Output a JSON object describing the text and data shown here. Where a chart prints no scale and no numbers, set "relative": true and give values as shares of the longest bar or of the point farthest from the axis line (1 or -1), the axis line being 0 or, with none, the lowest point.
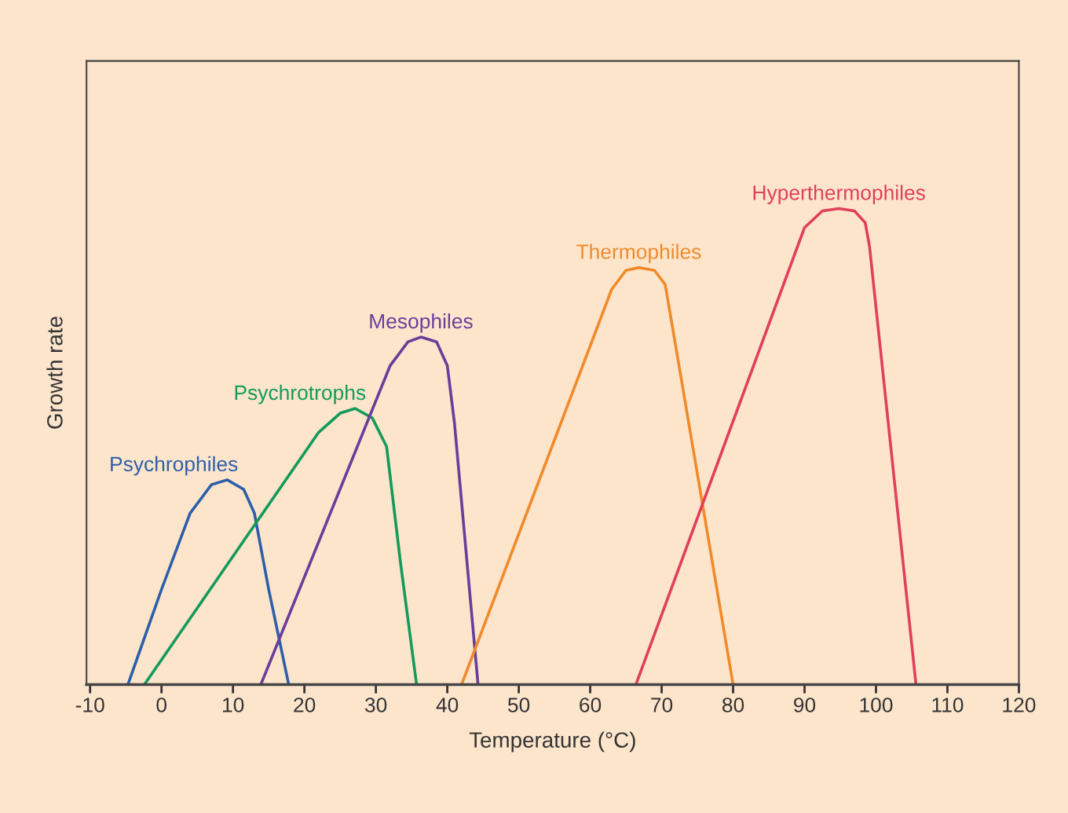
{
  "chart_data": {
    "type": "line",
    "xlabel": "Temperature (°C)",
    "ylabel": "Growth rate",
    "relative": true,
    "xlim": [
      -10.5,
      120
    ],
    "xticks": [
      -10,
      0,
      10,
      20,
      30,
      40,
      50,
      60,
      70,
      80,
      90,
      100,
      110,
      120
    ],
    "tick_labels": "x",
    "grid": false,
    "legend": false,
    "marker": "none",
    "line_style": "solid",
    "series": [
      {
        "name": "Psychrophiles",
        "color": "#2d5fa8",
        "x": [
          -4.7,
          0,
          4,
          7,
          9.2,
          11.5,
          13,
          15,
          17.8
        ],
        "values": [
          0,
          0.2,
          0.36,
          0.42,
          0.43,
          0.41,
          0.36,
          0.2,
          0
        ]
      },
      {
        "name": "Psychrotrophs",
        "color": "#149a5a",
        "x": [
          -2.4,
          22,
          25,
          27.1,
          29.5,
          31.5,
          33.5,
          35.7
        ],
        "values": [
          0,
          0.53,
          0.57,
          0.58,
          0.56,
          0.5,
          0.25,
          0
        ]
      },
      {
        "name": "Mesophiles",
        "color": "#6a3d9a",
        "x": [
          13.9,
          32,
          34.5,
          36.3,
          38.5,
          40,
          41,
          44.3
        ],
        "values": [
          0,
          0.67,
          0.72,
          0.73,
          0.72,
          0.67,
          0.55,
          0
        ]
      },
      {
        "name": "Thermophiles",
        "color": "#f08a2a",
        "x": [
          42,
          63,
          65,
          66.8,
          69,
          70.5,
          71.3,
          80
        ],
        "values": [
          0,
          0.83,
          0.87,
          0.876,
          0.87,
          0.84,
          0.77,
          0
        ]
      },
      {
        "name": "Hyperthermophiles",
        "color": "#e0405a",
        "x": [
          66.4,
          90,
          92.5,
          94.8,
          97,
          98.5,
          99.1,
          105.6
        ],
        "values": [
          0,
          0.96,
          0.995,
          1,
          0.995,
          0.97,
          0.92,
          0
        ]
      }
    ]
  }
}
